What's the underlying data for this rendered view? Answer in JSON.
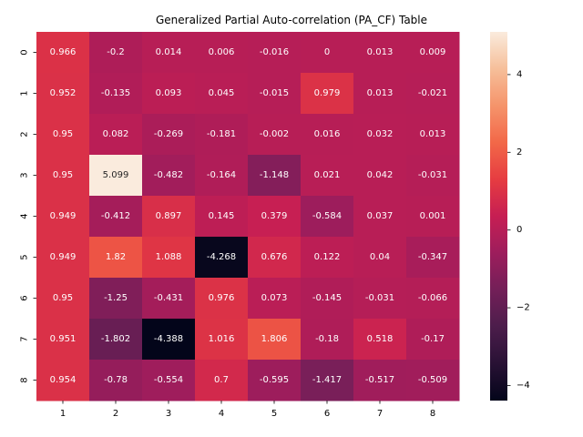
{
  "chart_data": {
    "type": "heatmap",
    "title": "Generalized Partial Auto-correlation (PA_CF) Table",
    "x_categories": [
      "1",
      "2",
      "3",
      "4",
      "5",
      "6",
      "7",
      "8"
    ],
    "y_categories": [
      "0",
      "1",
      "2",
      "3",
      "4",
      "5",
      "6",
      "7",
      "8"
    ],
    "values": [
      [
        0.966,
        -0.2,
        0.014,
        0.006,
        -0.016,
        0,
        0.013,
        0.009
      ],
      [
        0.952,
        -0.135,
        0.093,
        0.045,
        -0.015,
        0.979,
        0.013,
        -0.021
      ],
      [
        0.95,
        0.082,
        -0.269,
        -0.181,
        -0.002,
        0.016,
        0.032,
        0.013
      ],
      [
        0.95,
        5.099,
        -0.482,
        -0.164,
        -1.148,
        0.021,
        0.042,
        -0.031
      ],
      [
        0.949,
        -0.412,
        0.897,
        0.145,
        0.379,
        -0.584,
        0.037,
        0.001
      ],
      [
        0.949,
        1.82,
        1.088,
        -4.268,
        0.676,
        0.122,
        0.04,
        -0.347
      ],
      [
        0.95,
        -1.25,
        -0.431,
        0.976,
        0.073,
        -0.145,
        -0.031,
        -0.066
      ],
      [
        0.951,
        -1.802,
        -4.388,
        1.016,
        1.806,
        -0.18,
        0.518,
        -0.17
      ],
      [
        0.954,
        -0.78,
        -0.554,
        0.7,
        -0.595,
        -1.417,
        -0.517,
        -0.509
      ]
    ],
    "value_labels": [
      [
        "0.966",
        "-0.2",
        "0.014",
        "0.006",
        "-0.016",
        "0",
        "0.013",
        "0.009"
      ],
      [
        "0.952",
        "-0.135",
        "0.093",
        "0.045",
        "-0.015",
        "0.979",
        "0.013",
        "-0.021"
      ],
      [
        "0.95",
        "0.082",
        "-0.269",
        "-0.181",
        "-0.002",
        "0.016",
        "0.032",
        "0.013"
      ],
      [
        "0.95",
        "5.099",
        "-0.482",
        "-0.164",
        "-1.148",
        "0.021",
        "0.042",
        "-0.031"
      ],
      [
        "0.949",
        "-0.412",
        "0.897",
        "0.145",
        "0.379",
        "-0.584",
        "0.037",
        "0.001"
      ],
      [
        "0.949",
        "1.82",
        "1.088",
        "-4.268",
        "0.676",
        "0.122",
        "0.04",
        "-0.347"
      ],
      [
        "0.95",
        "-1.25",
        "-0.431",
        "0.976",
        "0.073",
        "-0.145",
        "-0.031",
        "-0.066"
      ],
      [
        "0.951",
        "-1.802",
        "-4.388",
        "1.016",
        "1.806",
        "-0.18",
        "0.518",
        "-0.17"
      ],
      [
        "0.954",
        "-0.78",
        "-0.554",
        "0.7",
        "-0.595",
        "-1.417",
        "-0.517",
        "-0.509"
      ]
    ],
    "colorbar": {
      "vmin": -4.388,
      "vmax": 5.099,
      "ticks": [
        -4,
        -2,
        0,
        2,
        4
      ],
      "tick_labels": [
        "−4",
        "−2",
        "0",
        "2",
        "4"
      ],
      "colormap": "rocket"
    },
    "xlabel": "",
    "ylabel": ""
  }
}
